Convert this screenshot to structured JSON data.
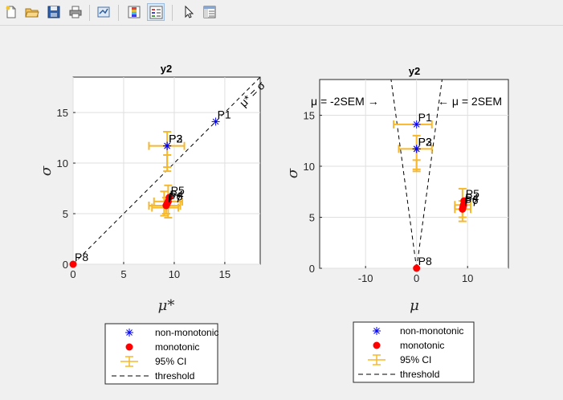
{
  "toolbar": {
    "buttons": [
      {
        "name": "new-figure-icon",
        "x": 0
      },
      {
        "name": "open-file-icon",
        "x": 0
      },
      {
        "name": "save-figure-icon",
        "x": 0
      },
      {
        "name": "print-figure-icon",
        "x": 0
      },
      {
        "name": "link-plot-icon",
        "x": 0
      },
      {
        "name": "colorbar-icon",
        "x": 0
      },
      {
        "name": "legend-icon",
        "x": 0
      },
      {
        "name": "edit-plot-icon",
        "x": 0
      },
      {
        "name": "property-inspector-icon",
        "x": 0
      }
    ]
  },
  "chart_data": [
    {
      "type": "scatter",
      "title": "y2",
      "xlabel": "μ*",
      "ylabel": "σ",
      "xlim": [
        0,
        18.5
      ],
      "ylim": [
        0,
        18.5
      ],
      "xticks": [
        0,
        5,
        10,
        15
      ],
      "yticks": [
        0,
        5,
        10,
        15
      ],
      "grid": true,
      "threshold_label": "μ* = σ",
      "series": [
        {
          "name": "non-monotonic",
          "marker": "asterisk",
          "color": "#0000ff",
          "points": [
            {
              "label": "P1",
              "x": 14.1,
              "y": 14.1
            },
            {
              "label": "P2",
              "x": 9.3,
              "y": 11.7
            },
            {
              "label": "P3",
              "x": 9.3,
              "y": 11.7
            }
          ]
        },
        {
          "name": "monotonic",
          "marker": "dot",
          "color": "#ff0000",
          "points": [
            {
              "label": "P4",
              "x": 9.4,
              "y": 6.2
            },
            {
              "label": "P5",
              "x": 9.5,
              "y": 6.6
            },
            {
              "label": "P6",
              "x": 9.3,
              "y": 6.0
            },
            {
              "label": "P7",
              "x": 9.2,
              "y": 5.8
            },
            {
              "label": "P8",
              "x": 0,
              "y": 0
            }
          ]
        },
        {
          "name": "95% CI",
          "color": "#f5b82e",
          "errorbars": [
            {
              "x": 9.3,
              "y": 11.7,
              "xlo": 7.5,
              "xhi": 11.0,
              "ylo": 9.2,
              "yhi": 13.1
            },
            {
              "x": 9.3,
              "y": 10.2,
              "xlo": 9.3,
              "xhi": 9.3,
              "ylo": 9.6,
              "yhi": 10.8
            },
            {
              "x": 9.4,
              "y": 6.2,
              "xlo": 8.0,
              "xhi": 10.8,
              "ylo": 4.6,
              "yhi": 7.8
            },
            {
              "x": 9.2,
              "y": 5.8,
              "xlo": 7.5,
              "xhi": 10.6,
              "ylo": 5.0,
              "yhi": 6.6
            },
            {
              "x": 9.0,
              "y": 5.6,
              "xlo": 7.8,
              "xhi": 10.4,
              "ylo": 4.8,
              "yhi": 7.2
            }
          ]
        },
        {
          "name": "threshold",
          "line": [
            [
              0,
              0
            ],
            [
              18.5,
              18.5
            ]
          ]
        }
      ]
    },
    {
      "type": "scatter",
      "title": "y2",
      "xlabel": "μ",
      "ylabel": "σ",
      "xlim": [
        -19,
        18
      ],
      "ylim": [
        0,
        18.5
      ],
      "xticks": [
        -10,
        0,
        10
      ],
      "yticks": [
        0,
        5,
        10,
        15
      ],
      "grid": true,
      "annotations": [
        "μ = -2SEM →",
        "← μ = 2SEM"
      ],
      "series": [
        {
          "name": "non-monotonic",
          "marker": "asterisk",
          "color": "#0000ff",
          "points": [
            {
              "label": "P1",
              "x": 0,
              "y": 14.1
            },
            {
              "label": "P2",
              "x": 0,
              "y": 11.7
            },
            {
              "label": "P3",
              "x": 0,
              "y": 11.7
            }
          ]
        },
        {
          "name": "monotonic",
          "marker": "dot",
          "color": "#ff0000",
          "points": [
            {
              "label": "P4",
              "x": 9.2,
              "y": 6.2
            },
            {
              "label": "P5",
              "x": 9.3,
              "y": 6.6
            },
            {
              "label": "P6",
              "x": 9.1,
              "y": 6.0
            },
            {
              "label": "P7",
              "x": 9.0,
              "y": 5.8
            },
            {
              "label": "P8",
              "x": 0,
              "y": 0
            }
          ]
        },
        {
          "name": "95% CI",
          "color": "#f5b82e",
          "errorbars": [
            {
              "x": 0,
              "y": 14.1,
              "xlo": -4.5,
              "xhi": 3.0,
              "ylo": 14.1,
              "yhi": 14.1
            },
            {
              "x": 0,
              "y": 11.7,
              "xlo": -3.5,
              "xhi": 3.0,
              "ylo": 9.5,
              "yhi": 13.0
            },
            {
              "x": 0,
              "y": 10.2,
              "xlo": 0,
              "xhi": 0,
              "ylo": 9.7,
              "yhi": 10.6
            },
            {
              "x": 9.0,
              "y": 6.2,
              "xlo": 7.5,
              "xhi": 10.6,
              "ylo": 4.6,
              "yhi": 7.8
            },
            {
              "x": 9.0,
              "y": 5.8,
              "xlo": 7.5,
              "xhi": 10.6,
              "ylo": 5.0,
              "yhi": 6.6
            }
          ]
        },
        {
          "name": "threshold",
          "lines": [
            [
              [
                0,
                0
              ],
              [
                -5.0,
                18.5
              ]
            ],
            [
              [
                0,
                0
              ],
              [
                5.0,
                18.5
              ]
            ]
          ]
        }
      ]
    }
  ],
  "legend": {
    "entries": [
      "non-monotonic",
      "monotonic",
      "95% CI",
      "threshold"
    ]
  }
}
